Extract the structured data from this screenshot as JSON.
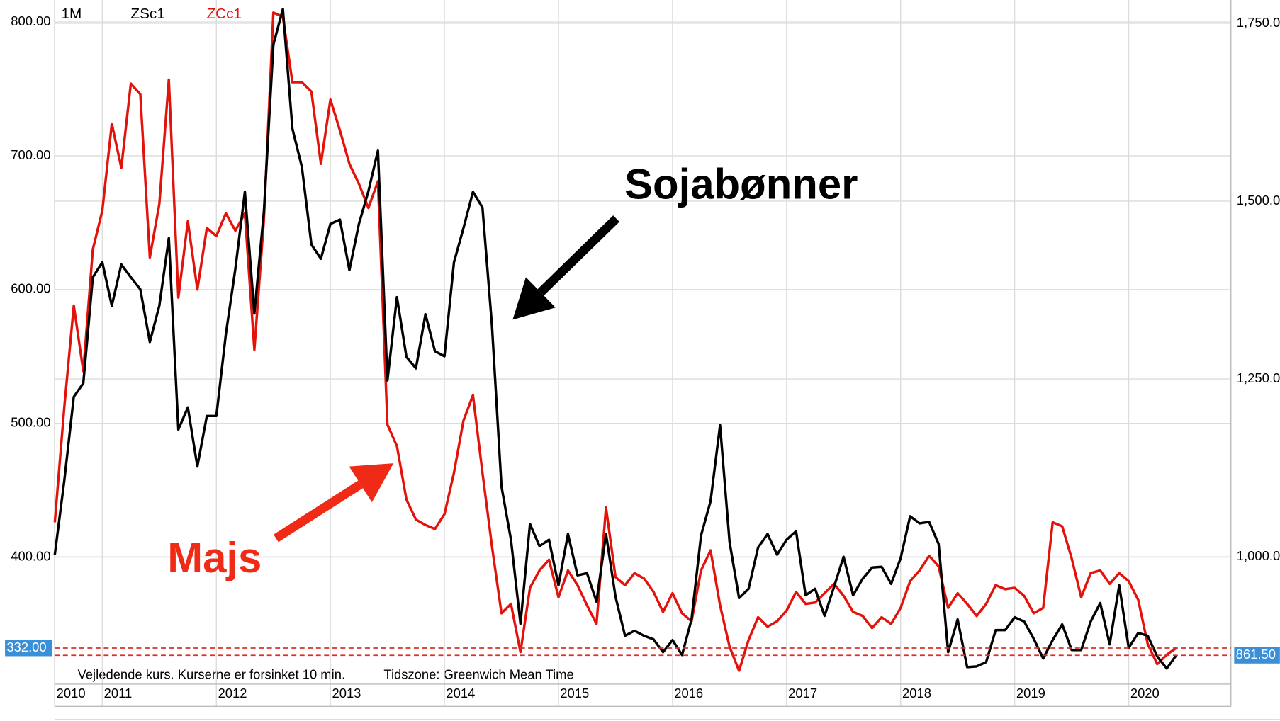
{
  "chart_data": {
    "type": "line",
    "interval": "1M",
    "categories": [
      "2010",
      null,
      null,
      null,
      null,
      "2011",
      null,
      null,
      null,
      null,
      null,
      null,
      null,
      null,
      null,
      null,
      null,
      "2012",
      null,
      null,
      null,
      null,
      null,
      null,
      null,
      null,
      null,
      null,
      null,
      "2013",
      null,
      null,
      null,
      null,
      null,
      null,
      null,
      null,
      null,
      null,
      null,
      "2014",
      null,
      null,
      null,
      null,
      null,
      null,
      null,
      null,
      null,
      null,
      null,
      "2015",
      null,
      null,
      null,
      null,
      null,
      null,
      null,
      null,
      null,
      null,
      null,
      "2016",
      null,
      null,
      null,
      null,
      null,
      null,
      null,
      null,
      null,
      null,
      null,
      "2017",
      null,
      null,
      null,
      null,
      null,
      null,
      null,
      null,
      null,
      null,
      null,
      "2018",
      null,
      null,
      null,
      null,
      null,
      null,
      null,
      null,
      null,
      null,
      null,
      "2019",
      null,
      null,
      null,
      null,
      null,
      null,
      null,
      null,
      null,
      null,
      null,
      "2020",
      null,
      null,
      null,
      null,
      null
    ],
    "series": [
      {
        "name": "ZSc1",
        "color": "#000000",
        "axis": "y2",
        "values": [
          1003,
          1107,
          1225,
          1244,
          1393,
          1414,
          1353,
          1411,
          1393,
          1376,
          1302,
          1353,
          1448,
          1179,
          1210,
          1127,
          1198,
          1198,
          1313,
          1405,
          1513,
          1342,
          1485,
          1720,
          1770,
          1602,
          1548,
          1439,
          1419,
          1468,
          1474,
          1403,
          1468,
          1514,
          1571,
          1248,
          1365,
          1281,
          1265,
          1341,
          1289,
          1282,
          1414,
          1462,
          1513,
          1491,
          1325,
          1099,
          1024,
          906,
          1046,
          1015,
          1024,
          960,
          1032,
          974,
          977,
          937,
          1032,
          944,
          889,
          896,
          889,
          884,
          866,
          883,
          862,
          912,
          1030,
          1078,
          1185,
          1021,
          942,
          955,
          1013,
          1032,
          1003,
          1024,
          1036,
          946,
          955,
          917,
          958,
          1000,
          946,
          969,
          985,
          986,
          962,
          998,
          1057,
          1047,
          1049,
          1018,
          866,
          912,
          845,
          846,
          852,
          897,
          897,
          915,
          909,
          885,
          857,
          883,
          905,
          869,
          869,
          909,
          935,
          877,
          960,
          872,
          893,
          889,
          860,
          843,
          861.5
        ]
      },
      {
        "name": "ZCc1",
        "color": "#e3120b",
        "axis": "y",
        "values": [
          426,
          512,
          588,
          539,
          630,
          659,
          724,
          691,
          754,
          746,
          624,
          664,
          757,
          594,
          651,
          600,
          646,
          640,
          657,
          644,
          657,
          555,
          652,
          807,
          804,
          755,
          755,
          748,
          694,
          742,
          719,
          694,
          679,
          661,
          681,
          499,
          483,
          443,
          428,
          424,
          421,
          432,
          463,
          502,
          521,
          463,
          408,
          358,
          365,
          329,
          377,
          390,
          398,
          370,
          390,
          379,
          364,
          350,
          437,
          385,
          379,
          388,
          384,
          374,
          359,
          373,
          358,
          352,
          390,
          405,
          364,
          333,
          315,
          338,
          355,
          348,
          352,
          360,
          374,
          365,
          366,
          373,
          380,
          371,
          359,
          356,
          347,
          355,
          350,
          362,
          382,
          390,
          401,
          393,
          362,
          373,
          365,
          356,
          365,
          379,
          376,
          377,
          371,
          358,
          362,
          426,
          423,
          399,
          370,
          388,
          390,
          380,
          388,
          382,
          368,
          335,
          320,
          327,
          332
        ]
      }
    ],
    "ylim": [
      305,
      815
    ],
    "yticks": [
      {
        "value": 400,
        "label": "400.00"
      },
      {
        "value": 500,
        "label": "500.00"
      },
      {
        "value": 600,
        "label": "600.00"
      },
      {
        "value": 700,
        "label": "700.00"
      },
      {
        "value": 800,
        "label": "800.00"
      }
    ],
    "y2lim": [
      821,
      1780
    ],
    "y2ticks": [
      {
        "value": 1000,
        "label": "1,000.00"
      },
      {
        "value": 1250,
        "label": "1,250.00"
      },
      {
        "value": 1500,
        "label": "1,500.00"
      },
      {
        "value": 1750,
        "label": "1,750.00"
      }
    ],
    "grid": true,
    "last_values": [
      {
        "value": 332,
        "label": "332.00",
        "axis": "y"
      },
      {
        "value": 861.5,
        "label": "861.50",
        "axis": "y2"
      }
    ],
    "annotations": [
      {
        "text": "Sojabønner",
        "color": "#000000"
      },
      {
        "text": "Majs",
        "color": "#ef2a17"
      }
    ],
    "notes": [
      "Vejledende kurs. Kurserne er forsinket 10 min.",
      "Tidszone: Greenwich Mean Time"
    ]
  }
}
